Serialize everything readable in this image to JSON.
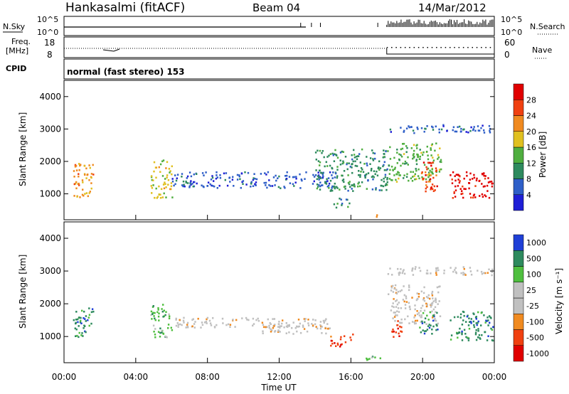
{
  "header": {
    "station": "Hankasalmi (fitACF)",
    "beam": "Beam 04",
    "date": "14/Mar/2012"
  },
  "panels": {
    "nsky": {
      "left_label": "N.Sky",
      "right_label": "N.Search",
      "left_ticks": [
        "10^5",
        "10^0"
      ],
      "right_ticks": [
        "10^5",
        "10^0"
      ]
    },
    "freq": {
      "left_label_1": "Freq.",
      "left_label_2": "[MHz]",
      "left_ticks": [
        "18",
        "8"
      ],
      "right_label": "Nave",
      "right_ticks": [
        "60",
        "0"
      ]
    },
    "cpid": {
      "label": "CPID",
      "text": "normal (fast stereo) 153"
    }
  },
  "colors": {
    "power": [
      "#1f1fd6",
      "#2f5fc8",
      "#2e8a5e",
      "#4fae3f",
      "#e0c020",
      "#f08a20",
      "#f04010",
      "#e00000"
    ],
    "velocity": [
      "#e00000",
      "#f04010",
      "#f08a20",
      "#c0c0c0",
      "#c0c0c0",
      "#4fbf3f",
      "#2e8a5e",
      "#1f3fd6"
    ]
  },
  "chart_data": [
    {
      "type": "heatmap",
      "quantity": "Power",
      "ylabel": "Slant Range [km]",
      "colorbar_label": "Power [dB]",
      "colorbar_ticks": [
        "28",
        "24",
        "20",
        "16",
        "12",
        "8",
        "4"
      ],
      "yticks": [
        "4000",
        "3000",
        "2000",
        "1000"
      ],
      "ylim": [
        200,
        4500
      ],
      "xlim": [
        0,
        24
      ],
      "regions": [
        {
          "t0": 0.5,
          "t1": 1.6,
          "r0": 900,
          "r1": 2000,
          "level": 5
        },
        {
          "t0": 4.8,
          "t1": 6.0,
          "r0": 900,
          "r1": 2100,
          "level": 4
        },
        {
          "t0": 6.0,
          "t1": 15.0,
          "r0": 1200,
          "r1": 1700,
          "level": 1
        },
        {
          "t0": 14.0,
          "t1": 18.0,
          "r0": 1100,
          "r1": 2400,
          "level": 2
        },
        {
          "t0": 15.0,
          "t1": 15.9,
          "r0": 600,
          "r1": 900,
          "level": 2
        },
        {
          "t0": 16.7,
          "t1": 17.8,
          "r0": 300,
          "r1": 420,
          "level": 5
        },
        {
          "t0": 18.0,
          "t1": 23.9,
          "r0": 2900,
          "r1": 3150,
          "level": 1
        },
        {
          "t0": 18.0,
          "t1": 21.0,
          "r0": 1400,
          "r1": 2600,
          "level": 3
        },
        {
          "t0": 19.8,
          "t1": 20.8,
          "r0": 1100,
          "r1": 2000,
          "level": 6
        },
        {
          "t0": 21.5,
          "t1": 23.9,
          "r0": 900,
          "r1": 1700,
          "level": 7
        }
      ]
    },
    {
      "type": "heatmap",
      "quantity": "Velocity",
      "ylabel": "Slant Range [km]",
      "xlabel": "Time UT",
      "colorbar_label": "Velocity [m s⁻¹]",
      "colorbar_ticks": [
        "1000",
        "500",
        "100",
        "25",
        "-25",
        "-100",
        "-500",
        "-1000"
      ],
      "yticks": [
        "4000",
        "3000",
        "2000",
        "1000"
      ],
      "xticks": [
        "00:00",
        "04:00",
        "08:00",
        "12:00",
        "16:00",
        "20:00",
        "00:00"
      ],
      "ylim": [
        200,
        4500
      ],
      "xlim": [
        0,
        24
      ],
      "regions": [
        {
          "t0": 0.5,
          "t1": 1.6,
          "r0": 1000,
          "r1": 1900,
          "level": 6
        },
        {
          "t0": 4.8,
          "t1": 6.0,
          "r0": 1000,
          "r1": 2000,
          "level": 5
        },
        {
          "t0": 6.0,
          "t1": 15.0,
          "r0": 1300,
          "r1": 1600,
          "level": 3
        },
        {
          "t0": 11.0,
          "t1": 15.0,
          "r0": 1100,
          "r1": 1350,
          "level": 3
        },
        {
          "t0": 14.8,
          "t1": 16.2,
          "r0": 700,
          "r1": 1100,
          "level": 1
        },
        {
          "t0": 16.5,
          "t1": 17.8,
          "r0": 300,
          "r1": 420,
          "level": 5
        },
        {
          "t0": 18.0,
          "t1": 23.9,
          "r0": 2900,
          "r1": 3150,
          "level": 3
        },
        {
          "t0": 18.0,
          "t1": 21.0,
          "r0": 1400,
          "r1": 2600,
          "level": 3
        },
        {
          "t0": 18.2,
          "t1": 18.8,
          "r0": 1000,
          "r1": 1600,
          "level": 1
        },
        {
          "t0": 19.8,
          "t1": 20.8,
          "r0": 1100,
          "r1": 1800,
          "level": 6
        },
        {
          "t0": 21.5,
          "t1": 23.9,
          "r0": 900,
          "r1": 1800,
          "level": 6
        }
      ]
    }
  ]
}
